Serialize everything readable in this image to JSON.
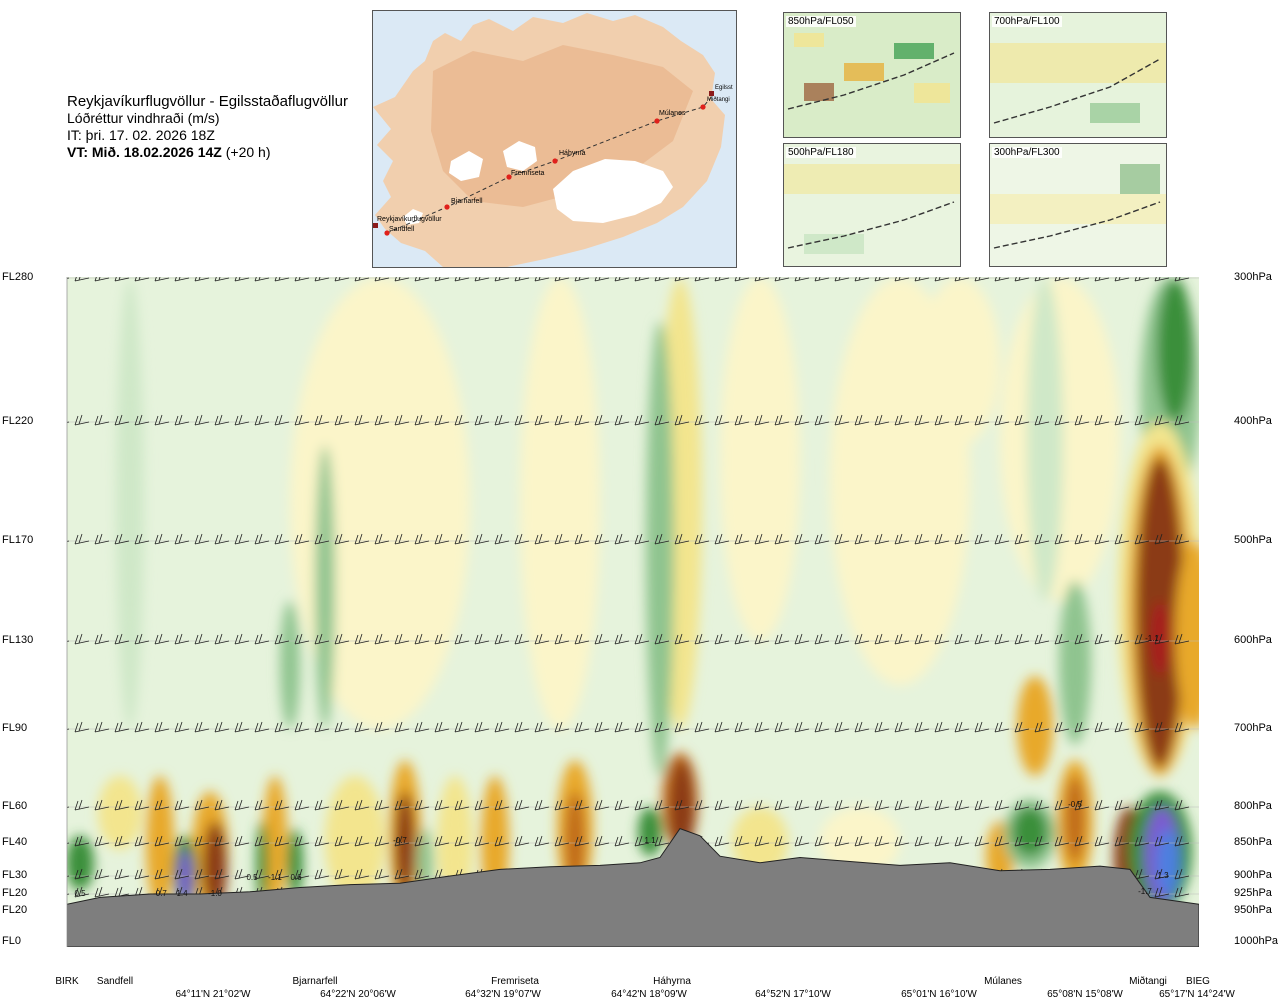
{
  "header": {
    "route": "Reykjavíkurflugvöllur - Egilsstaðaflugvöllur",
    "variable": "Lóðréttur vindhraði (m/s)",
    "it": "IT: þri. 17. 02. 2026 18Z",
    "vt_bold": "VT: Mið. 18.02.2026 14Z",
    "vt_rest": " (+20 h)"
  },
  "map": {
    "stations": [
      "Reykjavíkurflugvöllur",
      "Sandfell",
      "Bjarnarfell",
      "Fremriseta",
      "Háhyrna",
      "Múlanes",
      "Egilsst",
      "Miðtangi"
    ],
    "colors": {
      "sea": "#dbe9f5",
      "land": "#f1cfae",
      "relief": "#e0a67d",
      "ice": "#ffffff",
      "route": "#333333",
      "marker": "#e0201b"
    }
  },
  "insets": [
    {
      "label": "850hPa/FL050"
    },
    {
      "label": "700hPa/FL100"
    },
    {
      "label": "500hPa/FL180"
    },
    {
      "label": "300hPa/FL300"
    }
  ],
  "chart_data": {
    "type": "heatmap",
    "title": "Lóðréttur vindhraði (m/s)",
    "xlabel": "",
    "ylabel": "",
    "left_axis_labels": [
      "FL280",
      "FL220",
      "FL170",
      "FL130",
      "FL90",
      "FL60",
      "FL40",
      "FL30",
      "FL20",
      "FL20",
      "FL0"
    ],
    "right_axis_labels": [
      "300hPa",
      "400hPa",
      "500hPa",
      "600hPa",
      "700hPa",
      "800hPa",
      "850hPa",
      "900hPa",
      "925hPa",
      "950hPa",
      "1000hPa"
    ],
    "pressure_levels_hpa": [
      300,
      400,
      500,
      600,
      700,
      800,
      850,
      900,
      925,
      950,
      1000
    ],
    "locations": [
      "BIRK",
      "Sandfell",
      "Bjarnarfell",
      "Fremriseta",
      "Háhyrna",
      "Múlanes",
      "Miðtangi",
      "BIEG"
    ],
    "coordinates": [
      "64°11'N 21°02'W",
      "64°22'N 20°06'W",
      "64°32'N 19°07'W",
      "64°42'N 18°09'W",
      "64°52'N 17°10'W",
      "65°01'N 16°10'W",
      "65°08'N 15°08'W",
      "65°17'N 14°24'W"
    ],
    "value_labels": [
      "0.5",
      "-0.7",
      "1.4",
      "-1.0",
      "0.5",
      "-1.1",
      "0.6",
      "-0.7",
      "1.1",
      "-0.5",
      "-1.1",
      "-1.7",
      "1.3"
    ],
    "colors": {
      "strong_up": "#8b3a14",
      "up3": "#c06a1b",
      "up2": "#e8a92a",
      "up1": "#f3e58e",
      "up0": "#fbf5c9",
      "down0": "#e6f3dc",
      "down1": "#cfe8c8",
      "down2": "#8fc48f",
      "down3": "#3a8f3a",
      "down4": "#138a2e",
      "core_up": "#a81b1b",
      "core_down": "#7b5bd0",
      "core_down2": "#4e7fe0",
      "terrain": "#7e7e7e"
    }
  }
}
